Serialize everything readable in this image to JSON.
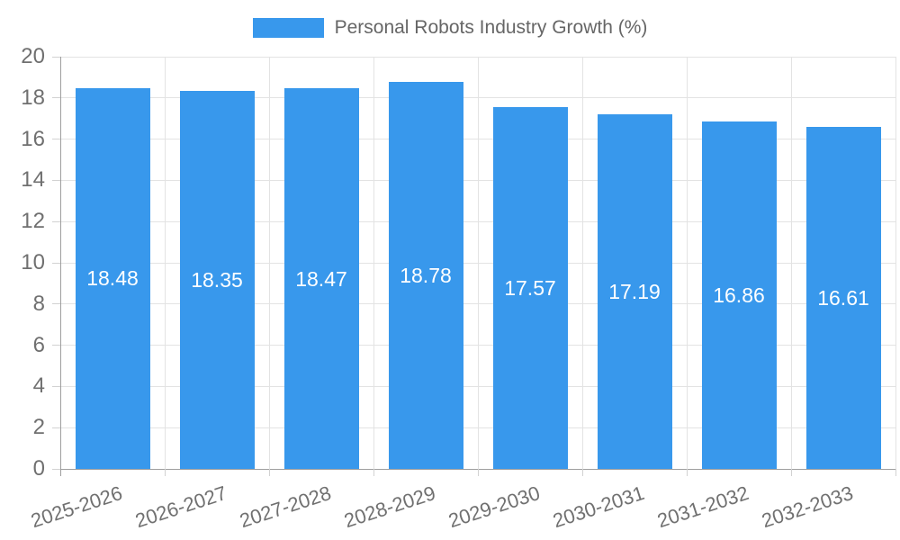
{
  "chart_data": {
    "type": "bar",
    "title": "Personal Robots Industry Growth (%)",
    "categories": [
      "2025-2026",
      "2026-2027",
      "2027-2028",
      "2028-2029",
      "2029-2030",
      "2030-2031",
      "2031-2032",
      "2032-2033"
    ],
    "values": [
      18.48,
      18.35,
      18.47,
      18.78,
      17.57,
      17.19,
      16.86,
      16.61
    ],
    "value_labels": [
      "18.48",
      "18.35",
      "18.47",
      "18.78",
      "17.57",
      "17.19",
      "16.86",
      "16.61"
    ],
    "ytick_labels": [
      "0",
      "2",
      "4",
      "6",
      "8",
      "10",
      "12",
      "14",
      "16",
      "18",
      "20"
    ],
    "ylim": [
      0,
      20
    ],
    "ytick_step": 2,
    "grid": true,
    "legend_position": "top",
    "x_label_rotation_deg": -18,
    "colors": {
      "bar": "#3898EC",
      "value_label": "#FFFFFF",
      "legend_text": "#666666",
      "tick_label": "#707070",
      "gridline": "#E3E3E3",
      "axis_line": "#9E9E9E",
      "tick_mark": "#D2D2D2",
      "background": "#FFFFFF"
    }
  }
}
